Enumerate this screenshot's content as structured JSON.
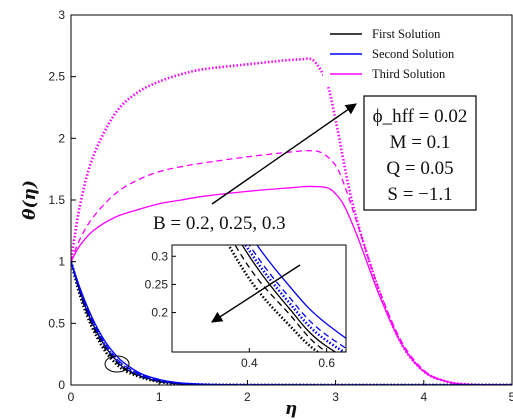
{
  "chart_data": {
    "type": "line",
    "xlabel": "η",
    "ylabel": "θ(η)",
    "xlim": [
      0,
      5
    ],
    "ylim": [
      0,
      3
    ],
    "xticks": [
      "0",
      "1",
      "2",
      "3",
      "4",
      "5"
    ],
    "yticks": [
      "0",
      "0.5",
      "1",
      "1.5",
      "2",
      "2.5",
      "3"
    ],
    "grid": false,
    "legend": {
      "placement": "top-right",
      "entries": [
        {
          "label": "First Solution",
          "color": "#000000"
        },
        {
          "label": "Second Solution",
          "color": "#0000ff"
        },
        {
          "label": "Third Solution",
          "color": "#ff00ff"
        }
      ]
    },
    "parameter_label": "B = 0.2, 0.25, 0.3",
    "parameters_box": [
      "ϕ_hff = 0.02",
      "M = 0.1",
      "Q = 0.05",
      "S = −1.1"
    ],
    "series": [
      {
        "solution": "Third Solution",
        "B": "0.2",
        "color": "#ff00ff",
        "style": "solid",
        "x": [
          0,
          0.1,
          0.25,
          0.5,
          0.75,
          1.0,
          1.25,
          1.5,
          2.0,
          2.5,
          2.7,
          2.9,
          3.0,
          3.1,
          3.25,
          3.5,
          3.75,
          4.0,
          4.25,
          4.5,
          5.0
        ],
        "y": [
          1.0,
          1.13,
          1.25,
          1.36,
          1.42,
          1.47,
          1.5,
          1.53,
          1.57,
          1.6,
          1.61,
          1.6,
          1.55,
          1.45,
          1.2,
          0.72,
          0.33,
          0.11,
          0.03,
          0.005,
          0.0
        ]
      },
      {
        "solution": "Third Solution",
        "B": "0.25",
        "color": "#ff00ff",
        "style": "dashed",
        "x": [
          0,
          0.1,
          0.25,
          0.5,
          0.75,
          1.0,
          1.25,
          1.5,
          2.0,
          2.5,
          2.7,
          2.85,
          3.0,
          3.1,
          3.25,
          3.5,
          3.75,
          4.0,
          4.25,
          4.5,
          5.0
        ],
        "y": [
          1.0,
          1.18,
          1.36,
          1.55,
          1.66,
          1.73,
          1.77,
          1.8,
          1.85,
          1.89,
          1.9,
          1.88,
          1.78,
          1.62,
          1.3,
          0.76,
          0.35,
          0.12,
          0.03,
          0.005,
          0.0
        ]
      },
      {
        "solution": "Third Solution",
        "B": "0.3",
        "color": "#ff00ff",
        "style": "dotted",
        "x": [
          0,
          0.1,
          0.25,
          0.5,
          0.75,
          1.0,
          1.25,
          1.5,
          2.0,
          2.4,
          2.6,
          2.75,
          2.9,
          3.0,
          3.2,
          3.5,
          3.75,
          4.0,
          4.25,
          4.5,
          5.0
        ],
        "y": [
          1.0,
          1.45,
          1.85,
          2.2,
          2.37,
          2.46,
          2.52,
          2.56,
          2.6,
          2.63,
          2.64,
          2.63,
          2.45,
          2.15,
          1.45,
          0.75,
          0.33,
          0.11,
          0.03,
          0.005,
          0.0
        ]
      },
      {
        "solution": "First Solution",
        "B": "0.2",
        "color": "#000000",
        "style": "solid",
        "x": [
          0,
          0.1,
          0.2,
          0.3,
          0.4,
          0.5,
          0.6,
          0.8,
          1.0,
          1.2,
          1.5,
          2.0,
          3.0,
          5.0
        ],
        "y": [
          1.0,
          0.76,
          0.57,
          0.42,
          0.3,
          0.21,
          0.14,
          0.07,
          0.03,
          0.012,
          0.003,
          0.0,
          0.0,
          0.0
        ]
      },
      {
        "solution": "First Solution",
        "B": "0.25",
        "color": "#000000",
        "style": "dashed",
        "x": [
          0,
          0.1,
          0.2,
          0.3,
          0.4,
          0.5,
          0.6,
          0.8,
          1.0,
          1.2,
          1.5,
          2.0,
          3.0,
          5.0
        ],
        "y": [
          1.0,
          0.75,
          0.55,
          0.4,
          0.28,
          0.2,
          0.13,
          0.065,
          0.028,
          0.011,
          0.003,
          0.0,
          0.0,
          0.0
        ]
      },
      {
        "solution": "First Solution",
        "B": "0.3",
        "color": "#000000",
        "style": "dotted",
        "x": [
          0,
          0.1,
          0.2,
          0.3,
          0.4,
          0.5,
          0.6,
          0.8,
          1.0,
          1.2,
          1.5,
          2.0,
          3.0,
          5.0
        ],
        "y": [
          1.0,
          0.73,
          0.53,
          0.38,
          0.26,
          0.18,
          0.12,
          0.06,
          0.025,
          0.01,
          0.002,
          0.0,
          0.0,
          0.0
        ]
      },
      {
        "solution": "Second Solution",
        "B": "0.2",
        "color": "#0000ff",
        "style": "solid",
        "x": [
          0,
          0.1,
          0.2,
          0.3,
          0.4,
          0.5,
          0.6,
          0.8,
          1.0,
          1.2,
          1.5,
          2.0,
          3.0,
          5.0
        ],
        "y": [
          1.0,
          0.79,
          0.61,
          0.46,
          0.34,
          0.25,
          0.18,
          0.09,
          0.045,
          0.02,
          0.006,
          0.001,
          0.0,
          0.0
        ]
      },
      {
        "solution": "Second Solution",
        "B": "0.25",
        "color": "#0000ff",
        "style": "dashed",
        "x": [
          0,
          0.1,
          0.2,
          0.3,
          0.4,
          0.5,
          0.6,
          0.8,
          1.0,
          1.2,
          1.5,
          2.0,
          3.0,
          5.0
        ],
        "y": [
          1.0,
          0.78,
          0.59,
          0.44,
          0.32,
          0.23,
          0.16,
          0.08,
          0.038,
          0.016,
          0.005,
          0.001,
          0.0,
          0.0
        ]
      },
      {
        "solution": "Second Solution",
        "B": "0.3",
        "color": "#0000ff",
        "style": "dotted",
        "x": [
          0,
          0.1,
          0.2,
          0.3,
          0.4,
          0.5,
          0.6,
          0.8,
          1.0,
          1.2,
          1.5,
          2.0,
          3.0,
          5.0
        ],
        "y": [
          1.0,
          0.77,
          0.58,
          0.43,
          0.31,
          0.22,
          0.15,
          0.075,
          0.035,
          0.014,
          0.004,
          0.001,
          0.0,
          0.0
        ]
      }
    ],
    "inset": {
      "xlim": [
        0.2,
        0.65
      ],
      "ylim": [
        0.13,
        0.32
      ],
      "xticks": [
        "0.4",
        "0.6"
      ],
      "yticks": [
        "0.2",
        "0.25",
        "0.3"
      ]
    }
  }
}
